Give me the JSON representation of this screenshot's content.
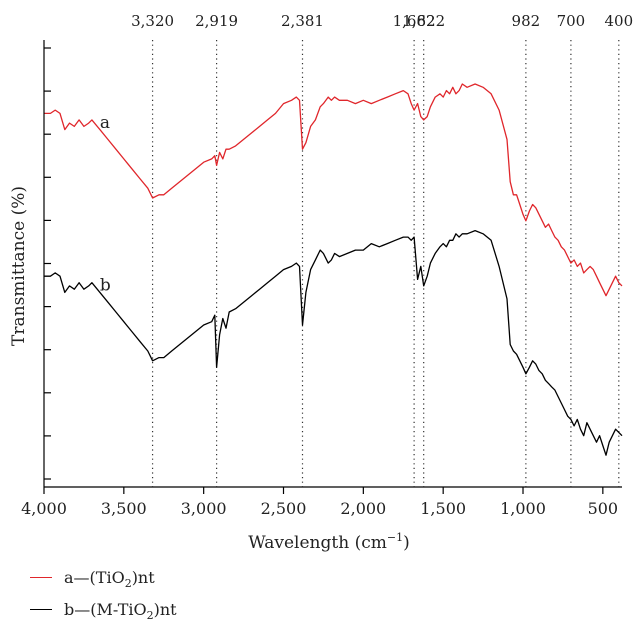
{
  "chart_data": {
    "type": "line",
    "title": "",
    "xlabel": "Wavelength (cm",
    "xlabel_sup": "−1",
    "xlabel_end": ")",
    "ylabel": "Transmittance (%)",
    "xlim": [
      4000,
      380
    ],
    "x_reversed": true,
    "grid": false,
    "x_ticks": [
      4000,
      3500,
      3000,
      2500,
      2000,
      1500,
      1000,
      500
    ],
    "x_tick_labels": [
      "4,000",
      "3,500",
      "3,000",
      "2,500",
      "2,000",
      "1,500",
      "1,000",
      "500"
    ],
    "y_ticks_count": 11,
    "peaks": [
      {
        "x": 3320,
        "label": "3,320"
      },
      {
        "x": 2919,
        "label": "2,919"
      },
      {
        "x": 2381,
        "label": "2,381"
      },
      {
        "x": 1682,
        "label": "1,682"
      },
      {
        "x": 1622,
        "label": "1,622"
      },
      {
        "x": 982,
        "label": "982"
      },
      {
        "x": 700,
        "label": "700"
      },
      {
        "x": 400,
        "label": "400"
      }
    ],
    "legend_position": "bottom-left",
    "series": [
      {
        "name": "a",
        "legend_prefix": "a—(TiO",
        "legend_sub": "2",
        "legend_suffix": ")nt",
        "color": "#e0262b",
        "x": [
          4000,
          3960,
          3930,
          3900,
          3870,
          3840,
          3810,
          3780,
          3750,
          3720,
          3700,
          3650,
          3600,
          3550,
          3500,
          3450,
          3400,
          3350,
          3320,
          3280,
          3250,
          3200,
          3150,
          3100,
          3050,
          3000,
          2950,
          2930,
          2919,
          2900,
          2880,
          2860,
          2840,
          2800,
          2750,
          2700,
          2650,
          2600,
          2550,
          2500,
          2450,
          2420,
          2400,
          2381,
          2360,
          2330,
          2300,
          2270,
          2250,
          2220,
          2200,
          2180,
          2150,
          2100,
          2050,
          2000,
          1950,
          1900,
          1850,
          1800,
          1750,
          1720,
          1700,
          1682,
          1660,
          1640,
          1622,
          1600,
          1580,
          1550,
          1520,
          1500,
          1480,
          1460,
          1440,
          1420,
          1400,
          1380,
          1350,
          1300,
          1250,
          1200,
          1150,
          1100,
          1080,
          1060,
          1040,
          1020,
          1000,
          982,
          960,
          940,
          920,
          900,
          880,
          860,
          840,
          820,
          800,
          780,
          760,
          740,
          720,
          700,
          680,
          660,
          640,
          620,
          600,
          580,
          560,
          540,
          520,
          500,
          480,
          460,
          440,
          420,
          400,
          380
        ],
        "y": [
          83,
          83,
          84,
          83,
          78,
          80,
          79,
          81,
          79,
          80,
          81,
          78,
          75,
          72,
          69,
          66,
          63,
          60,
          57,
          58,
          58,
          60,
          62,
          64,
          66,
          68,
          69,
          70,
          67,
          71,
          69,
          72,
          72,
          73,
          75,
          77,
          79,
          81,
          83,
          86,
          87,
          88,
          87,
          72,
          74,
          79,
          81,
          85,
          86,
          88,
          87,
          88,
          87,
          87,
          86,
          87,
          86,
          87,
          88,
          89,
          90,
          89,
          86,
          84,
          86,
          82,
          81,
          82,
          85,
          88,
          89,
          88,
          90,
          89,
          91,
          89,
          90,
          92,
          91,
          92,
          91,
          89,
          84,
          75,
          62,
          58,
          58,
          55,
          52,
          50,
          53,
          55,
          54,
          52,
          50,
          48,
          49,
          47,
          45,
          44,
          42,
          41,
          39,
          37,
          38,
          36,
          37,
          34,
          35,
          36,
          35,
          33,
          31,
          29,
          27,
          29,
          31,
          33,
          31,
          30
        ]
      },
      {
        "name": "b",
        "legend_prefix": "b—(M-TiO",
        "legend_sub": "2",
        "legend_suffix": ")nt",
        "color": "#000000",
        "x": [
          4000,
          3960,
          3930,
          3900,
          3870,
          3840,
          3810,
          3780,
          3750,
          3720,
          3700,
          3650,
          3600,
          3550,
          3500,
          3450,
          3400,
          3350,
          3320,
          3280,
          3250,
          3200,
          3150,
          3100,
          3050,
          3000,
          2950,
          2930,
          2919,
          2900,
          2880,
          2860,
          2840,
          2800,
          2750,
          2700,
          2650,
          2600,
          2550,
          2500,
          2450,
          2420,
          2400,
          2381,
          2360,
          2330,
          2300,
          2270,
          2250,
          2220,
          2200,
          2180,
          2150,
          2100,
          2050,
          2000,
          1950,
          1900,
          1850,
          1800,
          1750,
          1720,
          1700,
          1682,
          1660,
          1640,
          1622,
          1600,
          1580,
          1550,
          1520,
          1500,
          1480,
          1460,
          1440,
          1420,
          1400,
          1380,
          1350,
          1300,
          1250,
          1200,
          1150,
          1100,
          1080,
          1060,
          1040,
          1020,
          1000,
          982,
          960,
          940,
          920,
          900,
          880,
          860,
          840,
          820,
          800,
          780,
          760,
          740,
          720,
          700,
          680,
          660,
          640,
          620,
          600,
          580,
          560,
          540,
          520,
          500,
          480,
          460,
          440,
          420,
          400,
          380
        ],
        "y": [
          33,
          33,
          34,
          33,
          28,
          30,
          29,
          31,
          29,
          30,
          31,
          28,
          25,
          22,
          19,
          16,
          13,
          10,
          7,
          8,
          8,
          10,
          12,
          14,
          16,
          18,
          19,
          21,
          5,
          15,
          20,
          17,
          22,
          23,
          25,
          27,
          29,
          31,
          33,
          35,
          36,
          37,
          36,
          18,
          28,
          35,
          38,
          41,
          40,
          37,
          38,
          40,
          39,
          40,
          41,
          41,
          43,
          42,
          43,
          44,
          45,
          45,
          44,
          45,
          32,
          36,
          30,
          33,
          37,
          40,
          42,
          43,
          42,
          44,
          44,
          46,
          45,
          46,
          46,
          47,
          46,
          44,
          36,
          26,
          12,
          10,
          9,
          7,
          5,
          3,
          5,
          7,
          6,
          4,
          3,
          1,
          0,
          -1,
          -2,
          -4,
          -6,
          -8,
          -10,
          -11,
          -13,
          -11,
          -14,
          -16,
          -12,
          -14,
          -16,
          -18,
          -16,
          -19,
          -22,
          -18,
          -16,
          -14,
          -15,
          -16
        ]
      }
    ]
  }
}
